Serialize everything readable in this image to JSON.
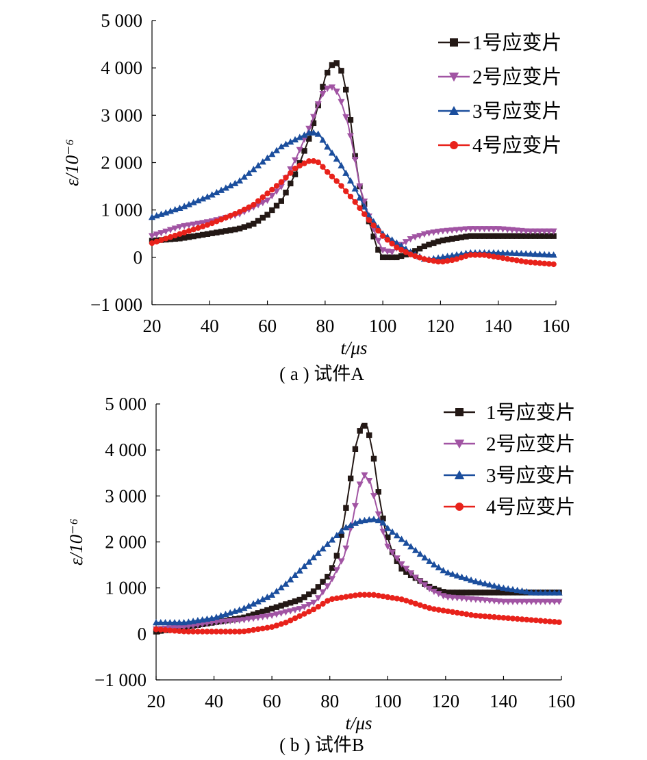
{
  "chart_data": [
    {
      "type": "line",
      "caption": "( a ) 试件A",
      "xlabel": "t/μs",
      "ylabel": "ε/10⁻⁶",
      "xlim": [
        20,
        160
      ],
      "ylim": [
        -1000,
        5000
      ],
      "xticks": [
        "20",
        "40",
        "60",
        "80",
        "100",
        "120",
        "140",
        "160"
      ],
      "yticks": [
        "−1 000",
        "0",
        "1 000",
        "2 000",
        "3 000",
        "4 000",
        "5 000"
      ],
      "legend_position": "top-right",
      "series": [
        {
          "name": "1号应变片",
          "color": "#231815",
          "marker": "square",
          "points": [
            [
              20,
              350
            ],
            [
              30,
              400
            ],
            [
              40,
              500
            ],
            [
              50,
              600
            ],
            [
              55,
              700
            ],
            [
              60,
              900
            ],
            [
              65,
              1200
            ],
            [
              70,
              1800
            ],
            [
              75,
              2600
            ],
            [
              78,
              3300
            ],
            [
              80,
              3800
            ],
            [
              82,
              4050
            ],
            [
              84,
              4100
            ],
            [
              86,
              3900
            ],
            [
              88,
              3300
            ],
            [
              90,
              2300
            ],
            [
              92,
              1500
            ],
            [
              95,
              800
            ],
            [
              98,
              200
            ],
            [
              100,
              0
            ],
            [
              105,
              0
            ],
            [
              110,
              100
            ],
            [
              115,
              250
            ],
            [
              120,
              350
            ],
            [
              130,
              450
            ],
            [
              140,
              450
            ],
            [
              150,
              450
            ],
            [
              160,
              450
            ]
          ]
        },
        {
          "name": "2号应变片",
          "color": "#a154a3",
          "marker": "triangle-down",
          "points": [
            [
              20,
              450
            ],
            [
              25,
              550
            ],
            [
              30,
              650
            ],
            [
              40,
              750
            ],
            [
              50,
              900
            ],
            [
              60,
              1200
            ],
            [
              65,
              1500
            ],
            [
              70,
              2100
            ],
            [
              75,
              2800
            ],
            [
              78,
              3300
            ],
            [
              80,
              3550
            ],
            [
              83,
              3600
            ],
            [
              85,
              3400
            ],
            [
              88,
              2800
            ],
            [
              90,
              2200
            ],
            [
              92,
              1500
            ],
            [
              95,
              900
            ],
            [
              98,
              400
            ],
            [
              100,
              150
            ],
            [
              103,
              100
            ],
            [
              106,
              250
            ],
            [
              110,
              400
            ],
            [
              115,
              500
            ],
            [
              120,
              550
            ],
            [
              130,
              600
            ],
            [
              140,
              600
            ],
            [
              150,
              550
            ],
            [
              160,
              550
            ]
          ]
        },
        {
          "name": "3号应变片",
          "color": "#1b4e9d",
          "marker": "triangle-up",
          "points": [
            [
              20,
              850
            ],
            [
              25,
              950
            ],
            [
              30,
              1050
            ],
            [
              40,
              1300
            ],
            [
              50,
              1600
            ],
            [
              55,
              1850
            ],
            [
              60,
              2100
            ],
            [
              65,
              2350
            ],
            [
              70,
              2500
            ],
            [
              75,
              2650
            ],
            [
              78,
              2600
            ],
            [
              80,
              2400
            ],
            [
              85,
              2000
            ],
            [
              90,
              1500
            ],
            [
              95,
              900
            ],
            [
              100,
              500
            ],
            [
              105,
              300
            ],
            [
              110,
              100
            ],
            [
              115,
              -50
            ],
            [
              120,
              0
            ],
            [
              130,
              100
            ],
            [
              140,
              100
            ],
            [
              150,
              80
            ],
            [
              160,
              50
            ]
          ]
        },
        {
          "name": "4号应变片",
          "color": "#e8221b",
          "marker": "circle",
          "points": [
            [
              20,
              300
            ],
            [
              25,
              400
            ],
            [
              30,
              500
            ],
            [
              40,
              700
            ],
            [
              50,
              950
            ],
            [
              55,
              1100
            ],
            [
              60,
              1350
            ],
            [
              65,
              1600
            ],
            [
              70,
              1900
            ],
            [
              75,
              2050
            ],
            [
              78,
              2000
            ],
            [
              80,
              1850
            ],
            [
              85,
              1550
            ],
            [
              90,
              1200
            ],
            [
              95,
              800
            ],
            [
              100,
              450
            ],
            [
              105,
              200
            ],
            [
              110,
              50
            ],
            [
              115,
              -50
            ],
            [
              120,
              -100
            ],
            [
              125,
              -50
            ],
            [
              130,
              50
            ],
            [
              135,
              50
            ],
            [
              140,
              0
            ],
            [
              150,
              -100
            ],
            [
              160,
              -150
            ]
          ]
        }
      ]
    },
    {
      "type": "line",
      "caption": "( b ) 试件B",
      "xlabel": "t/μs",
      "ylabel": "ε/10⁻⁶",
      "xlim": [
        20,
        160
      ],
      "ylim": [
        -1000,
        5000
      ],
      "xticks": [
        "20",
        "40",
        "60",
        "80",
        "100",
        "120",
        "140",
        "160"
      ],
      "yticks": [
        "−1 000",
        "0",
        "1 000",
        "2 000",
        "3 000",
        "4 000",
        "5 000"
      ],
      "legend_position": "top-right",
      "series": [
        {
          "name": "1号应变片",
          "color": "#231815",
          "marker": "square",
          "points": [
            [
              20,
              50
            ],
            [
              30,
              150
            ],
            [
              40,
              250
            ],
            [
              50,
              350
            ],
            [
              60,
              550
            ],
            [
              70,
              750
            ],
            [
              75,
              950
            ],
            [
              80,
              1300
            ],
            [
              83,
              1800
            ],
            [
              85,
              2500
            ],
            [
              87,
              3300
            ],
            [
              89,
              4100
            ],
            [
              91,
              4550
            ],
            [
              93,
              4500
            ],
            [
              95,
              3900
            ],
            [
              97,
              3000
            ],
            [
              99,
              2300
            ],
            [
              102,
              1700
            ],
            [
              105,
              1400
            ],
            [
              110,
              1200
            ],
            [
              115,
              1000
            ],
            [
              120,
              900
            ],
            [
              130,
              900
            ],
            [
              140,
              900
            ],
            [
              150,
              900
            ],
            [
              160,
              900
            ]
          ]
        },
        {
          "name": "2号应变片",
          "color": "#a154a3",
          "marker": "triangle-down",
          "points": [
            [
              20,
              100
            ],
            [
              30,
              150
            ],
            [
              40,
              250
            ],
            [
              50,
              300
            ],
            [
              60,
              400
            ],
            [
              70,
              550
            ],
            [
              75,
              700
            ],
            [
              80,
              1100
            ],
            [
              85,
              1700
            ],
            [
              88,
              2500
            ],
            [
              90,
              3200
            ],
            [
              92,
              3450
            ],
            [
              94,
              3300
            ],
            [
              96,
              2800
            ],
            [
              98,
              2300
            ],
            [
              100,
              1900
            ],
            [
              105,
              1500
            ],
            [
              110,
              1200
            ],
            [
              115,
              950
            ],
            [
              120,
              800
            ],
            [
              130,
              750
            ],
            [
              140,
              700
            ],
            [
              150,
              700
            ],
            [
              160,
              700
            ]
          ]
        },
        {
          "name": "3号应变片",
          "color": "#1b4e9d",
          "marker": "triangle-up",
          "points": [
            [
              20,
              250
            ],
            [
              30,
              250
            ],
            [
              40,
              350
            ],
            [
              50,
              550
            ],
            [
              60,
              850
            ],
            [
              65,
              1100
            ],
            [
              70,
              1400
            ],
            [
              75,
              1700
            ],
            [
              80,
              2000
            ],
            [
              85,
              2300
            ],
            [
              90,
              2450
            ],
            [
              95,
              2500
            ],
            [
              98,
              2450
            ],
            [
              100,
              2300
            ],
            [
              105,
              2050
            ],
            [
              110,
              1800
            ],
            [
              115,
              1550
            ],
            [
              120,
              1350
            ],
            [
              130,
              1150
            ],
            [
              140,
              1000
            ],
            [
              150,
              900
            ],
            [
              160,
              900
            ]
          ]
        },
        {
          "name": "4号应变片",
          "color": "#e8221b",
          "marker": "circle",
          "points": [
            [
              20,
              100
            ],
            [
              30,
              50
            ],
            [
              40,
              50
            ],
            [
              50,
              50
            ],
            [
              60,
              150
            ],
            [
              65,
              250
            ],
            [
              70,
              400
            ],
            [
              75,
              550
            ],
            [
              80,
              750
            ],
            [
              85,
              800
            ],
            [
              90,
              850
            ],
            [
              95,
              850
            ],
            [
              100,
              800
            ],
            [
              105,
              750
            ],
            [
              110,
              650
            ],
            [
              115,
              550
            ],
            [
              120,
              500
            ],
            [
              130,
              400
            ],
            [
              140,
              350
            ],
            [
              150,
              300
            ],
            [
              160,
              250
            ]
          ]
        }
      ]
    }
  ]
}
